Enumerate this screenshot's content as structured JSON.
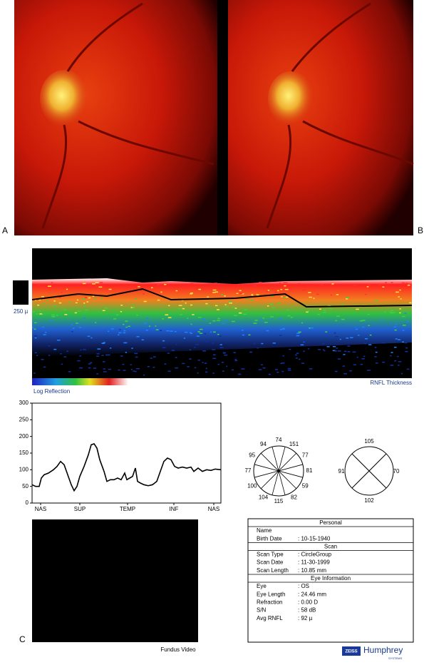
{
  "figure_labels": {
    "a": "A",
    "b": "B",
    "c": "C"
  },
  "oct_scan": {
    "scale_label": "250 µ",
    "colorbar_label": "Log Reflection",
    "right_label": "RNFL Thickness"
  },
  "chart_data": {
    "type": "line",
    "x": [
      0,
      5,
      10,
      13,
      17,
      23,
      30,
      35,
      40,
      45,
      50,
      55,
      59,
      63,
      67,
      73,
      79,
      83,
      87,
      91,
      95,
      101,
      105,
      110,
      115,
      120,
      125,
      130,
      133,
      137,
      141,
      145,
      148,
      152,
      157,
      163,
      169,
      175,
      180,
      185,
      190,
      195,
      200,
      205,
      211,
      217,
      223,
      227,
      233,
      239,
      245,
      251,
      257,
      265
    ],
    "values": [
      55,
      50,
      50,
      75,
      85,
      90,
      100,
      110,
      125,
      115,
      85,
      55,
      37,
      50,
      80,
      110,
      145,
      175,
      178,
      165,
      130,
      95,
      65,
      70,
      70,
      75,
      70,
      90,
      70,
      75,
      80,
      105,
      65,
      60,
      55,
      52,
      55,
      65,
      95,
      125,
      135,
      130,
      110,
      105,
      108,
      105,
      108,
      95,
      105,
      95,
      100,
      98,
      102,
      100
    ],
    "color": "#000000",
    "xlim": [
      0,
      265
    ],
    "ylim": [
      0,
      300
    ],
    "yticks": [
      0,
      50,
      100,
      150,
      200,
      250,
      300
    ],
    "xticks": [
      {
        "value": 12,
        "label": "NAS"
      },
      {
        "value": 67,
        "label": "SUP"
      },
      {
        "value": 134,
        "label": "TEMP"
      },
      {
        "value": 199,
        "label": "INF"
      },
      {
        "value": 255,
        "label": "NAS"
      }
    ]
  },
  "clock_sectors": [
    "74",
    "151",
    "77",
    "81",
    "59",
    "82",
    "115",
    "104",
    "100",
    "77",
    "95",
    "94"
  ],
  "quadrants": [
    "105",
    "70",
    "102",
    "91"
  ],
  "fundus_video": {
    "label": "Fundus Video"
  },
  "table": {
    "sections": [
      {
        "title": "Personal",
        "rows": [
          [
            "Name"
          ],
          [
            "Birth Date",
            ": 10-15-1940"
          ]
        ]
      },
      {
        "title": "Scan",
        "rows": [
          [
            "Scan Type",
            ": CircleGroup"
          ],
          [
            "Scan Date",
            ": 11-30-1999"
          ],
          [
            "Scan Length",
            ": 10.85 mm"
          ]
        ]
      },
      {
        "title": "Eye Information",
        "rows": [
          [
            "Eye",
            ": OS"
          ],
          [
            "Eye Length",
            ": 24.46 mm"
          ],
          [
            "Refraction",
            ": 0.00 D"
          ],
          [
            "S/N",
            ":  58 dB"
          ],
          [
            "Avg RNFL",
            ":  92 µ"
          ]
        ]
      }
    ]
  },
  "logo": {
    "brand": "ZEISS",
    "name": "Humphrey",
    "sub": "SYSTEMS"
  }
}
